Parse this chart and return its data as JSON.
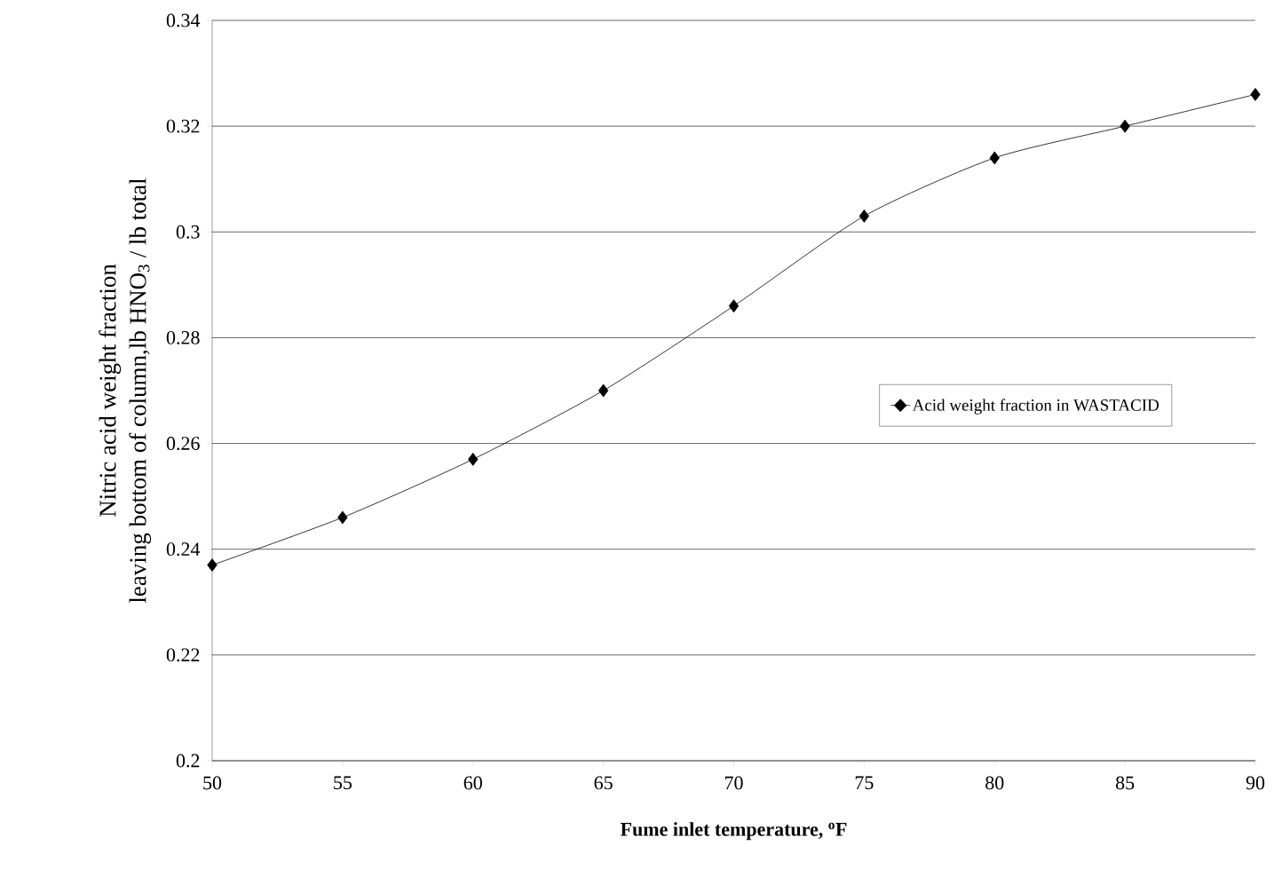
{
  "chart_data": {
    "type": "line",
    "xlabel": "Fume inlet temperature, $^{o}$F",
    "ylabel": "Nitric acid weight fraction\nleaving bottom of column,lb HNO$_{3}$ / lb total",
    "x": [
      50,
      55,
      60,
      65,
      70,
      75,
      80,
      85,
      90
    ],
    "series": [
      {
        "name": "Acid weight fraction in WASTACID",
        "color": "#000000",
        "values": [
          0.237,
          0.246,
          0.257,
          0.27,
          0.286,
          0.303,
          0.314,
          0.32,
          0.326
        ]
      }
    ],
    "xlim": [
      50,
      90
    ],
    "xticks": [
      50,
      55,
      60,
      65,
      70,
      75,
      80,
      85,
      90
    ],
    "ylim": [
      0.2,
      0.34
    ],
    "yticks": [
      {
        "value": 0.2,
        "label": "0.2"
      },
      0.22,
      0.24,
      0.26,
      0.28,
      {
        "value": 0.3,
        "label": "0.3"
      },
      0.32,
      0.34
    ],
    "grid": "y",
    "legend": "right",
    "marker": "diamond",
    "line_style": "solid"
  }
}
